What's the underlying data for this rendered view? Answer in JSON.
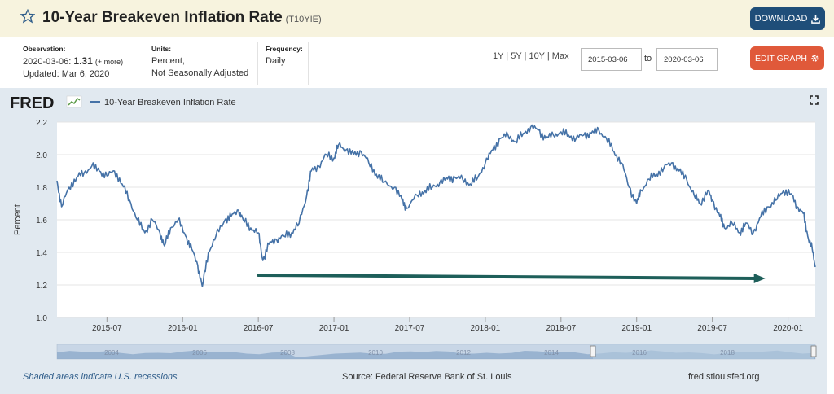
{
  "header": {
    "title": "10-Year Breakeven Inflation Rate",
    "series_id": "(T10YIE)",
    "download_label": "DOWNLOAD",
    "edit_label": "EDIT GRAPH"
  },
  "meta": {
    "observation_label": "Observation:",
    "observation_date": "2020-03-06:",
    "observation_value": "1.31",
    "observation_note": "(+ more)",
    "updated": "Updated: Mar 6, 2020",
    "units_label": "Units:",
    "units_line1": "Percent,",
    "units_line2": "Not Seasonally Adjusted",
    "frequency_label": "Frequency:",
    "frequency_value": "Daily"
  },
  "range": {
    "links": "1Y | 5Y | 10Y | Max",
    "start": "2015-03-06",
    "to": "to",
    "end": "2020-03-06"
  },
  "footer": {
    "recession_note": "Shaded areas indicate U.S. recessions",
    "source": "Source: Federal Reserve Bank of St. Louis",
    "site": "fred.stlouisfed.org"
  },
  "colors": {
    "line": "#4572a7",
    "arrow": "#1e5f5a",
    "panel": "#e1e9f0",
    "download": "#1f4e79",
    "edit": "#e0593a"
  },
  "chart_data": {
    "type": "line",
    "logo": "FRED",
    "legend": "10-Year Breakeven Inflation Rate",
    "ylabel": "Percent",
    "ylim": [
      1.0,
      2.2
    ],
    "yticks": [
      1.0,
      1.2,
      1.4,
      1.6,
      1.8,
      2.0,
      2.2
    ],
    "x_start": 2015.17,
    "x_end": 2020.18,
    "xticks": [
      {
        "x": 2015.5,
        "label": "2015-07"
      },
      {
        "x": 2016.0,
        "label": "2016-01"
      },
      {
        "x": 2016.5,
        "label": "2016-07"
      },
      {
        "x": 2017.0,
        "label": "2017-01"
      },
      {
        "x": 2017.5,
        "label": "2017-07"
      },
      {
        "x": 2018.0,
        "label": "2018-01"
      },
      {
        "x": 2018.5,
        "label": "2018-07"
      },
      {
        "x": 2019.0,
        "label": "2019-01"
      },
      {
        "x": 2019.5,
        "label": "2019-07"
      },
      {
        "x": 2020.0,
        "label": "2020-01"
      }
    ],
    "series": [
      {
        "values": [
          [
            2015.17,
            1.84
          ],
          [
            2015.2,
            1.68
          ],
          [
            2015.25,
            1.8
          ],
          [
            2015.3,
            1.86
          ],
          [
            2015.35,
            1.89
          ],
          [
            2015.4,
            1.93
          ],
          [
            2015.45,
            1.9
          ],
          [
            2015.5,
            1.87
          ],
          [
            2015.55,
            1.9
          ],
          [
            2015.6,
            1.82
          ],
          [
            2015.65,
            1.72
          ],
          [
            2015.7,
            1.6
          ],
          [
            2015.75,
            1.52
          ],
          [
            2015.8,
            1.6
          ],
          [
            2015.85,
            1.52
          ],
          [
            2015.88,
            1.44
          ],
          [
            2015.92,
            1.55
          ],
          [
            2015.97,
            1.6
          ],
          [
            2016.02,
            1.5
          ],
          [
            2016.06,
            1.42
          ],
          [
            2016.1,
            1.32
          ],
          [
            2016.13,
            1.19
          ],
          [
            2016.17,
            1.4
          ],
          [
            2016.22,
            1.5
          ],
          [
            2016.28,
            1.6
          ],
          [
            2016.32,
            1.62
          ],
          [
            2016.37,
            1.66
          ],
          [
            2016.4,
            1.6
          ],
          [
            2016.45,
            1.55
          ],
          [
            2016.5,
            1.52
          ],
          [
            2016.53,
            1.35
          ],
          [
            2016.57,
            1.45
          ],
          [
            2016.62,
            1.48
          ],
          [
            2016.67,
            1.5
          ],
          [
            2016.72,
            1.52
          ],
          [
            2016.77,
            1.58
          ],
          [
            2016.82,
            1.75
          ],
          [
            2016.85,
            1.9
          ],
          [
            2016.9,
            1.93
          ],
          [
            2016.95,
            2.0
          ],
          [
            2017.0,
            1.98
          ],
          [
            2017.03,
            2.06
          ],
          [
            2017.08,
            2.03
          ],
          [
            2017.13,
            2.0
          ],
          [
            2017.18,
            2.02
          ],
          [
            2017.23,
            1.95
          ],
          [
            2017.28,
            1.88
          ],
          [
            2017.33,
            1.83
          ],
          [
            2017.4,
            1.8
          ],
          [
            2017.45,
            1.72
          ],
          [
            2017.48,
            1.67
          ],
          [
            2017.55,
            1.75
          ],
          [
            2017.6,
            1.78
          ],
          [
            2017.65,
            1.8
          ],
          [
            2017.7,
            1.83
          ],
          [
            2017.75,
            1.85
          ],
          [
            2017.8,
            1.86
          ],
          [
            2017.85,
            1.85
          ],
          [
            2017.9,
            1.82
          ],
          [
            2017.95,
            1.86
          ],
          [
            2018.0,
            1.95
          ],
          [
            2018.05,
            2.03
          ],
          [
            2018.1,
            2.1
          ],
          [
            2018.15,
            2.12
          ],
          [
            2018.2,
            2.08
          ],
          [
            2018.25,
            2.13
          ],
          [
            2018.3,
            2.17
          ],
          [
            2018.35,
            2.15
          ],
          [
            2018.4,
            2.1
          ],
          [
            2018.45,
            2.12
          ],
          [
            2018.5,
            2.14
          ],
          [
            2018.55,
            2.12
          ],
          [
            2018.6,
            2.1
          ],
          [
            2018.65,
            2.12
          ],
          [
            2018.7,
            2.13
          ],
          [
            2018.75,
            2.15
          ],
          [
            2018.8,
            2.1
          ],
          [
            2018.85,
            2.02
          ],
          [
            2018.9,
            1.95
          ],
          [
            2018.95,
            1.8
          ],
          [
            2019.0,
            1.7
          ],
          [
            2019.03,
            1.78
          ],
          [
            2019.08,
            1.85
          ],
          [
            2019.13,
            1.88
          ],
          [
            2019.18,
            1.92
          ],
          [
            2019.23,
            1.95
          ],
          [
            2019.28,
            1.9
          ],
          [
            2019.33,
            1.85
          ],
          [
            2019.38,
            1.75
          ],
          [
            2019.42,
            1.7
          ],
          [
            2019.47,
            1.78
          ],
          [
            2019.5,
            1.72
          ],
          [
            2019.55,
            1.62
          ],
          [
            2019.58,
            1.55
          ],
          [
            2019.63,
            1.58
          ],
          [
            2019.68,
            1.52
          ],
          [
            2019.72,
            1.58
          ],
          [
            2019.77,
            1.52
          ],
          [
            2019.82,
            1.62
          ],
          [
            2019.87,
            1.68
          ],
          [
            2019.92,
            1.72
          ],
          [
            2019.97,
            1.78
          ],
          [
            2020.02,
            1.76
          ],
          [
            2020.06,
            1.68
          ],
          [
            2020.1,
            1.64
          ],
          [
            2020.13,
            1.5
          ],
          [
            2020.16,
            1.42
          ],
          [
            2020.18,
            1.31
          ]
        ]
      }
    ],
    "overview_labels": [
      "2004",
      "2006",
      "2008",
      "2010",
      "2012",
      "2014",
      "2016",
      "2018"
    ],
    "annotation": {
      "type": "arrow",
      "from": [
        2016.5,
        1.26
      ],
      "to": [
        2019.85,
        1.24
      ]
    }
  }
}
